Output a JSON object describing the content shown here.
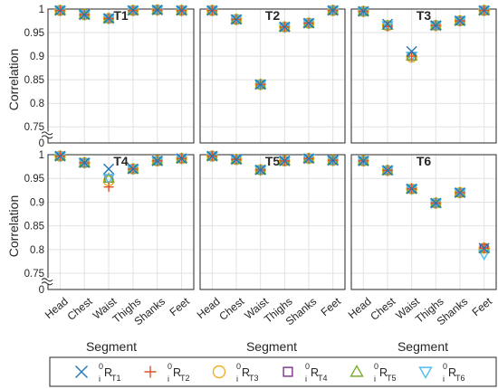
{
  "chart_data": {
    "type": "scatter",
    "ylabel": "Correlation",
    "xlabel": "Segment",
    "categories": [
      "Head",
      "Chest",
      "Waist",
      "Thighs",
      "Shanks",
      "Feet"
    ],
    "ylim": [
      0,
      1
    ],
    "yticks": [
      "0",
      "0.75",
      "0.8",
      "0.85",
      "0.9",
      "0.95",
      "1"
    ],
    "grid": true,
    "legend_placement": "bottom",
    "colors": {
      "RT1": "#1f77b4",
      "RT2": "#e0502a",
      "RT3": "#edb120",
      "RT4": "#7e2f8e",
      "RT5": "#77ac30",
      "RT6": "#4dbeee"
    },
    "legend": [
      {
        "key": "RT1",
        "marker": "x",
        "sup": "0",
        "sub": "i",
        "base": "R",
        "subscript": "T1"
      },
      {
        "key": "RT2",
        "marker": "plus",
        "sup": "0",
        "sub": "i",
        "base": "R",
        "subscript": "T2"
      },
      {
        "key": "RT3",
        "marker": "circle",
        "sup": "0",
        "sub": "i",
        "base": "R",
        "subscript": "T3"
      },
      {
        "key": "RT4",
        "marker": "square",
        "sup": "0",
        "sub": "i",
        "base": "R",
        "subscript": "T4"
      },
      {
        "key": "RT5",
        "marker": "triangle-up",
        "sup": "0",
        "sub": "i",
        "base": "R",
        "subscript": "T5"
      },
      {
        "key": "RT6",
        "marker": "triangle-down",
        "sup": "0",
        "sub": "i",
        "base": "R",
        "subscript": "T6"
      }
    ],
    "panels": [
      {
        "title": "T1",
        "series": {
          "RT1": [
            0.997,
            0.988,
            0.98,
            0.997,
            0.998,
            0.997
          ],
          "RT2": [
            0.997,
            0.988,
            0.98,
            0.997,
            0.998,
            0.997
          ],
          "RT3": [
            0.997,
            0.988,
            0.98,
            0.997,
            0.998,
            0.997
          ],
          "RT4": [
            0.997,
            0.988,
            0.98,
            0.997,
            0.998,
            0.997
          ],
          "RT5": [
            0.997,
            0.988,
            0.98,
            0.997,
            0.998,
            0.997
          ],
          "RT6": [
            0.997,
            0.988,
            0.98,
            0.997,
            0.998,
            0.997
          ]
        }
      },
      {
        "title": "T2",
        "series": {
          "RT1": [
            0.997,
            0.978,
            0.84,
            0.962,
            0.97,
            0.997
          ],
          "RT2": [
            0.997,
            0.978,
            0.84,
            0.962,
            0.97,
            0.997
          ],
          "RT3": [
            0.997,
            0.978,
            0.84,
            0.962,
            0.97,
            0.997
          ],
          "RT4": [
            0.997,
            0.978,
            0.84,
            0.962,
            0.97,
            0.997
          ],
          "RT5": [
            0.997,
            0.978,
            0.84,
            0.962,
            0.97,
            0.997
          ],
          "RT6": [
            0.997,
            0.978,
            0.84,
            0.962,
            0.97,
            0.997
          ]
        }
      },
      {
        "title": "T3",
        "series": {
          "RT1": [
            0.995,
            0.968,
            0.91,
            0.965,
            0.975,
            0.997
          ],
          "RT2": [
            0.995,
            0.963,
            0.9,
            0.965,
            0.975,
            0.997
          ],
          "RT3": [
            0.995,
            0.965,
            0.898,
            0.965,
            0.975,
            0.997
          ],
          "RT4": [
            0.995,
            0.965,
            0.9,
            0.965,
            0.975,
            0.997
          ],
          "RT5": [
            0.995,
            0.965,
            0.9,
            0.965,
            0.975,
            0.997
          ],
          "RT6": [
            0.995,
            0.965,
            0.9,
            0.965,
            0.975,
            0.997
          ]
        }
      },
      {
        "title": "T4",
        "series": {
          "RT1": [
            0.997,
            0.983,
            0.97,
            0.97,
            0.987,
            0.992
          ],
          "RT2": [
            0.997,
            0.983,
            0.932,
            0.97,
            0.987,
            0.992
          ],
          "RT3": [
            0.997,
            0.983,
            0.945,
            0.97,
            0.987,
            0.992
          ],
          "RT4": [
            0.997,
            0.983,
            0.95,
            0.97,
            0.987,
            0.992
          ],
          "RT5": [
            0.997,
            0.983,
            0.95,
            0.97,
            0.987,
            0.992
          ],
          "RT6": [
            0.997,
            0.983,
            0.95,
            0.97,
            0.987,
            0.992
          ]
        }
      },
      {
        "title": "T5",
        "series": {
          "RT1": [
            0.997,
            0.99,
            0.968,
            0.987,
            0.992,
            0.988
          ],
          "RT2": [
            0.997,
            0.99,
            0.968,
            0.987,
            0.992,
            0.988
          ],
          "RT3": [
            0.997,
            0.99,
            0.968,
            0.987,
            0.992,
            0.988
          ],
          "RT4": [
            0.997,
            0.99,
            0.968,
            0.987,
            0.992,
            0.988
          ],
          "RT5": [
            0.997,
            0.99,
            0.968,
            0.987,
            0.992,
            0.988
          ],
          "RT6": [
            0.997,
            0.99,
            0.968,
            0.987,
            0.992,
            0.988
          ]
        }
      },
      {
        "title": "T6",
        "series": {
          "RT1": [
            0.987,
            0.967,
            0.928,
            0.898,
            0.92,
            0.803
          ],
          "RT2": [
            0.987,
            0.967,
            0.928,
            0.898,
            0.92,
            0.803
          ],
          "RT3": [
            0.987,
            0.967,
            0.928,
            0.898,
            0.92,
            0.803
          ],
          "RT4": [
            0.987,
            0.967,
            0.928,
            0.898,
            0.92,
            0.803
          ],
          "RT5": [
            0.987,
            0.967,
            0.928,
            0.898,
            0.92,
            0.803
          ],
          "RT6": [
            0.987,
            0.967,
            0.928,
            0.898,
            0.92,
            0.79
          ]
        }
      }
    ]
  }
}
